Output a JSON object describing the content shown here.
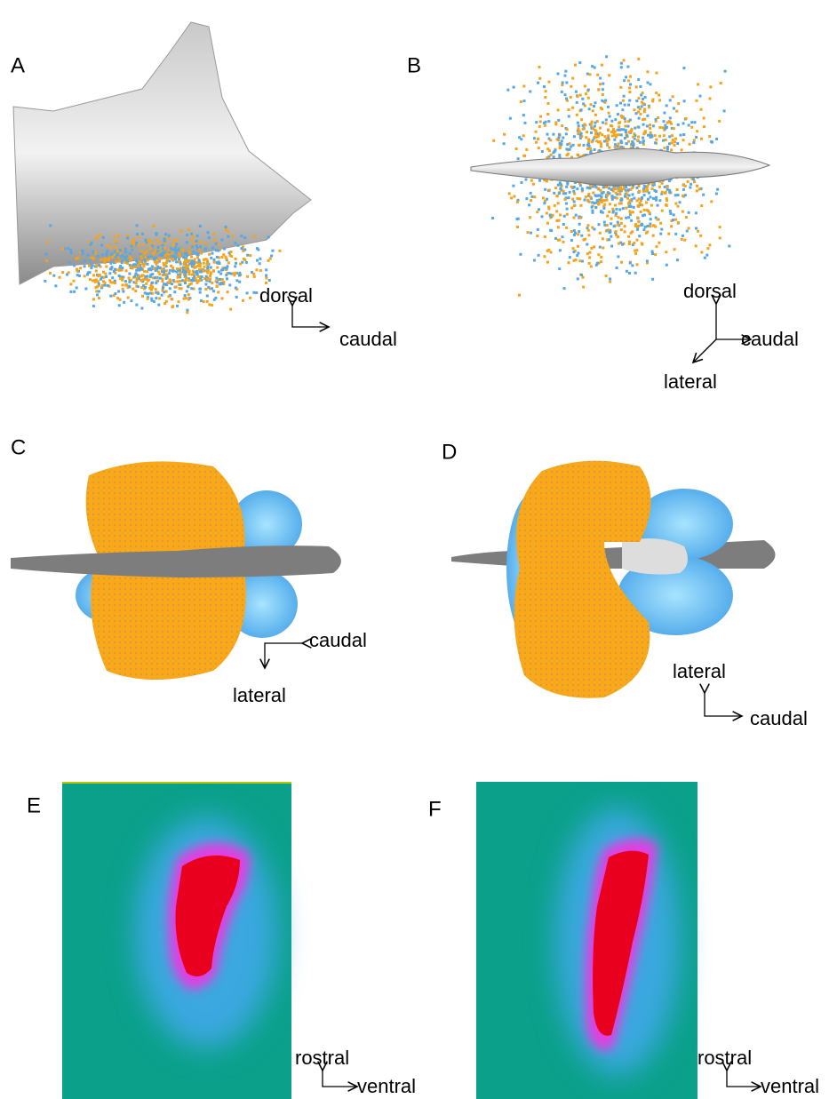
{
  "panels": [
    {
      "label": "A",
      "directions": [
        "dorsal",
        "caudal"
      ]
    },
    {
      "label": "B",
      "directions": [
        "dorsal",
        "caudal",
        "lateral"
      ]
    },
    {
      "label": "C",
      "directions": [
        "caudal",
        "lateral"
      ]
    },
    {
      "label": "D",
      "directions": [
        "lateral",
        "caudal"
      ]
    },
    {
      "label": "E",
      "directions": [
        "rostral",
        "ventral"
      ]
    },
    {
      "label": "F",
      "directions": [
        "rostral",
        "ventral"
      ]
    }
  ]
}
